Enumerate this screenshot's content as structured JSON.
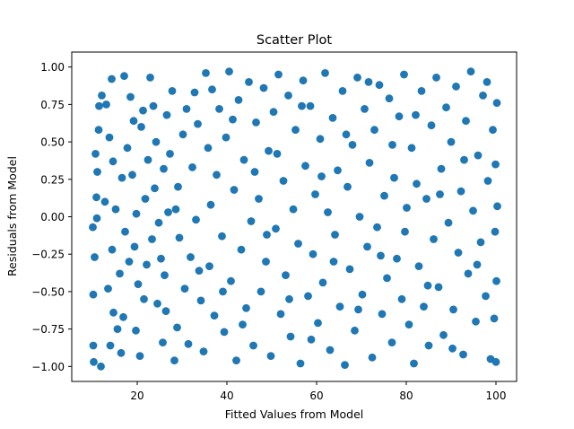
{
  "chart_data": {
    "type": "scatter",
    "title": "Scatter Plot",
    "xlabel": "Fitted Values from Model",
    "ylabel": "Residuals from Model",
    "xlim": [
      5.4,
      104.6
    ],
    "ylim": [
      -1.1,
      1.1
    ],
    "xticks": [
      20,
      40,
      60,
      80,
      100
    ],
    "xtick_labels": [
      "20",
      "40",
      "60",
      "80",
      "100"
    ],
    "yticks": [
      1.0,
      0.75,
      0.5,
      0.25,
      0.0,
      -0.25,
      -0.5,
      -0.75,
      -1.0
    ],
    "ytick_labels": [
      "1.00",
      "0.75",
      "0.50",
      "0.25",
      "0.00",
      "−0.25",
      "−0.50",
      "−0.75",
      "−1.00"
    ],
    "grid": false,
    "legend": "none",
    "marker_color": "#1f77b4",
    "points": [
      {
        "x": 11.9,
        "y": -1.0
      },
      {
        "x": 10.2,
        "y": -0.86
      },
      {
        "x": 10.3,
        "y": -0.97
      },
      {
        "x": 10.2,
        "y": -0.52
      },
      {
        "x": 10.5,
        "y": -0.27
      },
      {
        "x": 10.1,
        "y": -0.07
      },
      {
        "x": 11.0,
        "y": -0.01
      },
      {
        "x": 10.9,
        "y": 0.13
      },
      {
        "x": 11.1,
        "y": 0.3
      },
      {
        "x": 10.7,
        "y": 0.42
      },
      {
        "x": 11.4,
        "y": 0.58
      },
      {
        "x": 11.5,
        "y": 0.74
      },
      {
        "x": 12.1,
        "y": 0.81
      },
      {
        "x": 13.1,
        "y": 0.75
      },
      {
        "x": 14.3,
        "y": 0.92
      },
      {
        "x": 13.8,
        "y": 0.53
      },
      {
        "x": 14.6,
        "y": 0.37
      },
      {
        "x": 15.2,
        "y": 0.05
      },
      {
        "x": 14.4,
        "y": -0.22
      },
      {
        "x": 13.5,
        "y": -0.48
      },
      {
        "x": 14.7,
        "y": -0.64
      },
      {
        "x": 14.0,
        "y": -0.86
      },
      {
        "x": 16.4,
        "y": -0.91
      },
      {
        "x": 16.9,
        "y": -0.67
      },
      {
        "x": 16.1,
        "y": -0.38
      },
      {
        "x": 17.3,
        "y": -0.1
      },
      {
        "x": 16.6,
        "y": 0.26
      },
      {
        "x": 17.8,
        "y": 0.46
      },
      {
        "x": 17.1,
        "y": 0.94
      },
      {
        "x": 18.5,
        "y": 0.8
      },
      {
        "x": 19.2,
        "y": 0.64
      },
      {
        "x": 18.9,
        "y": 0.28
      },
      {
        "x": 19.8,
        "y": 0.02
      },
      {
        "x": 19.4,
        "y": -0.2
      },
      {
        "x": 20.2,
        "y": -0.45
      },
      {
        "x": 19.7,
        "y": -0.76
      },
      {
        "x": 20.6,
        "y": -0.93
      },
      {
        "x": 21.5,
        "y": -0.55
      },
      {
        "x": 22.1,
        "y": -0.32
      },
      {
        "x": 21.8,
        "y": 0.12
      },
      {
        "x": 22.4,
        "y": 0.38
      },
      {
        "x": 21.3,
        "y": 0.71
      },
      {
        "x": 22.9,
        "y": 0.93
      },
      {
        "x": 23.6,
        "y": 0.74
      },
      {
        "x": 24.2,
        "y": 0.5
      },
      {
        "x": 23.9,
        "y": 0.19
      },
      {
        "x": 24.8,
        "y": -0.04
      },
      {
        "x": 25.3,
        "y": -0.28
      },
      {
        "x": 24.5,
        "y": -0.58
      },
      {
        "x": 25.7,
        "y": -0.84
      },
      {
        "x": 26.4,
        "y": -0.63
      },
      {
        "x": 26.1,
        "y": -0.39
      },
      {
        "x": 26.9,
        "y": 0.03
      },
      {
        "x": 27.3,
        "y": 0.42
      },
      {
        "x": 26.6,
        "y": 0.68
      },
      {
        "x": 27.8,
        "y": 0.84
      },
      {
        "x": 28.3,
        "y": -0.96
      },
      {
        "x": 28.9,
        "y": -0.74
      },
      {
        "x": 29.4,
        "y": -0.14
      },
      {
        "x": 29.1,
        "y": 0.2
      },
      {
        "x": 30.2,
        "y": 0.55
      },
      {
        "x": 30.6,
        "y": -0.48
      },
      {
        "x": 31.4,
        "y": -0.85
      },
      {
        "x": 31.9,
        "y": -0.27
      },
      {
        "x": 32.3,
        "y": 0.33
      },
      {
        "x": 32.8,
        "y": 0.83
      },
      {
        "x": 33.5,
        "y": 0.62
      },
      {
        "x": 33.1,
        "y": -0.02
      },
      {
        "x": 34.2,
        "y": -0.56
      },
      {
        "x": 34.8,
        "y": -0.9
      },
      {
        "x": 35.3,
        "y": 0.96
      },
      {
        "x": 35.8,
        "y": 0.46
      },
      {
        "x": 36.4,
        "y": 0.08
      },
      {
        "x": 36.1,
        "y": -0.33
      },
      {
        "x": 37.2,
        "y": -0.66
      },
      {
        "x": 37.7,
        "y": 0.28
      },
      {
        "x": 38.3,
        "y": 0.72
      },
      {
        "x": 38.9,
        "y": -0.13
      },
      {
        "x": 39.4,
        "y": -0.77
      },
      {
        "x": 39.8,
        "y": 0.53
      },
      {
        "x": 40.5,
        "y": 0.97
      },
      {
        "x": 40.9,
        "y": -0.43
      },
      {
        "x": 41.6,
        "y": 0.18
      },
      {
        "x": 42.1,
        "y": -0.96
      },
      {
        "x": 42.6,
        "y": 0.78
      },
      {
        "x": 43.2,
        "y": -0.22
      },
      {
        "x": 43.8,
        "y": 0.38
      },
      {
        "x": 44.3,
        "y": -0.61
      },
      {
        "x": 44.9,
        "y": 0.9
      },
      {
        "x": 45.4,
        "y": -0.03
      },
      {
        "x": 45.9,
        "y": -0.86
      },
      {
        "x": 46.5,
        "y": 0.63
      },
      {
        "x": 47.1,
        "y": 0.12
      },
      {
        "x": 47.6,
        "y": -0.5
      },
      {
        "x": 48.2,
        "y": 0.86
      },
      {
        "x": 48.7,
        "y": -0.3
      },
      {
        "x": 49.3,
        "y": 0.44
      },
      {
        "x": 49.8,
        "y": -0.93
      },
      {
        "x": 50.4,
        "y": 0.7
      },
      {
        "x": 50.9,
        "y": -0.08
      },
      {
        "x": 51.5,
        "y": 0.95
      },
      {
        "x": 52.0,
        "y": -0.65
      },
      {
        "x": 52.6,
        "y": 0.24
      },
      {
        "x": 53.1,
        "y": -0.39
      },
      {
        "x": 53.7,
        "y": 0.81
      },
      {
        "x": 54.2,
        "y": -0.8
      },
      {
        "x": 54.8,
        "y": 0.05
      },
      {
        "x": 55.3,
        "y": 0.58
      },
      {
        "x": 55.9,
        "y": -0.18
      },
      {
        "x": 56.4,
        "y": -0.98
      },
      {
        "x": 57.0,
        "y": 0.91
      },
      {
        "x": 57.5,
        "y": 0.34
      },
      {
        "x": 58.1,
        "y": -0.53
      },
      {
        "x": 58.6,
        "y": 0.74
      },
      {
        "x": 59.2,
        "y": -0.25
      },
      {
        "x": 59.7,
        "y": 0.15
      },
      {
        "x": 60.3,
        "y": -0.71
      },
      {
        "x": 60.8,
        "y": 0.52
      },
      {
        "x": 61.4,
        "y": -0.44
      },
      {
        "x": 61.9,
        "y": 0.96
      },
      {
        "x": 62.5,
        "y": 0.03
      },
      {
        "x": 63.0,
        "y": -0.89
      },
      {
        "x": 63.6,
        "y": 0.66
      },
      {
        "x": 64.1,
        "y": -0.12
      },
      {
        "x": 64.7,
        "y": 0.31
      },
      {
        "x": 65.2,
        "y": -0.6
      },
      {
        "x": 65.8,
        "y": 0.84
      },
      {
        "x": 66.3,
        "y": -0.99
      },
      {
        "x": 66.9,
        "y": 0.2
      },
      {
        "x": 67.4,
        "y": -0.35
      },
      {
        "x": 68.0,
        "y": 0.48
      },
      {
        "x": 68.5,
        "y": -0.76
      },
      {
        "x": 69.1,
        "y": 0.93
      },
      {
        "x": 69.6,
        "y": 0.0
      },
      {
        "x": 70.2,
        "y": -0.52
      },
      {
        "x": 70.7,
        "y": 0.72
      },
      {
        "x": 71.3,
        "y": -0.2
      },
      {
        "x": 71.8,
        "y": 0.36
      },
      {
        "x": 72.4,
        "y": -0.94
      },
      {
        "x": 72.9,
        "y": 0.58
      },
      {
        "x": 73.5,
        "y": -0.07
      },
      {
        "x": 74.0,
        "y": 0.88
      },
      {
        "x": 74.6,
        "y": -0.65
      },
      {
        "x": 75.1,
        "y": 0.14
      },
      {
        "x": 75.7,
        "y": -0.41
      },
      {
        "x": 76.2,
        "y": 0.79
      },
      {
        "x": 76.8,
        "y": -0.84
      },
      {
        "x": 77.3,
        "y": 0.26
      },
      {
        "x": 77.9,
        "y": -0.28
      },
      {
        "x": 78.4,
        "y": 0.67
      },
      {
        "x": 79.0,
        "y": -0.55
      },
      {
        "x": 79.5,
        "y": 0.95
      },
      {
        "x": 80.1,
        "y": 0.06
      },
      {
        "x": 80.6,
        "y": -0.72
      },
      {
        "x": 81.2,
        "y": 0.46
      },
      {
        "x": 81.7,
        "y": -0.98
      },
      {
        "x": 82.3,
        "y": 0.22
      },
      {
        "x": 82.8,
        "y": -0.33
      },
      {
        "x": 83.4,
        "y": 0.84
      },
      {
        "x": 83.9,
        "y": -0.6
      },
      {
        "x": 84.5,
        "y": 0.12
      },
      {
        "x": 85.0,
        "y": -0.86
      },
      {
        "x": 85.6,
        "y": 0.61
      },
      {
        "x": 86.1,
        "y": -0.15
      },
      {
        "x": 86.7,
        "y": 0.93
      },
      {
        "x": 87.2,
        "y": -0.47
      },
      {
        "x": 87.8,
        "y": 0.32
      },
      {
        "x": 88.3,
        "y": -0.79
      },
      {
        "x": 88.9,
        "y": 0.73
      },
      {
        "x": 89.4,
        "y": -0.04
      },
      {
        "x": 90.0,
        "y": 0.5
      },
      {
        "x": 90.5,
        "y": -0.62
      },
      {
        "x": 91.1,
        "y": 0.87
      },
      {
        "x": 91.6,
        "y": -0.24
      },
      {
        "x": 92.2,
        "y": 0.17
      },
      {
        "x": 92.7,
        "y": -0.92
      },
      {
        "x": 93.3,
        "y": 0.64
      },
      {
        "x": 93.8,
        "y": -0.38
      },
      {
        "x": 94.4,
        "y": 0.97
      },
      {
        "x": 94.9,
        "y": 0.04
      },
      {
        "x": 95.5,
        "y": -0.7
      },
      {
        "x": 96.0,
        "y": 0.41
      },
      {
        "x": 96.6,
        "y": -0.17
      },
      {
        "x": 97.1,
        "y": 0.81
      },
      {
        "x": 97.7,
        "y": -0.53
      },
      {
        "x": 98.2,
        "y": 0.24
      },
      {
        "x": 98.8,
        "y": -0.95
      },
      {
        "x": 99.3,
        "y": 0.58
      },
      {
        "x": 99.8,
        "y": -0.1
      },
      {
        "x": 100.2,
        "y": 0.76
      },
      {
        "x": 100.0,
        "y": -0.97
      },
      {
        "x": 99.9,
        "y": 0.35
      },
      {
        "x": 100.1,
        "y": -0.43
      },
      {
        "x": 100.3,
        "y": 0.07
      },
      {
        "x": 99.6,
        "y": -0.68
      },
      {
        "x": 12.8,
        "y": 0.1
      },
      {
        "x": 15.6,
        "y": -0.75
      },
      {
        "x": 18.2,
        "y": -0.3
      },
      {
        "x": 20.9,
        "y": 0.6
      },
      {
        "x": 23.3,
        "y": -0.15
      },
      {
        "x": 25.9,
        "y": 0.32
      },
      {
        "x": 28.6,
        "y": 0.05
      },
      {
        "x": 31.0,
        "y": 0.72
      },
      {
        "x": 33.8,
        "y": -0.36
      },
      {
        "x": 36.7,
        "y": 0.85
      },
      {
        "x": 39.1,
        "y": -0.5
      },
      {
        "x": 41.3,
        "y": 0.65
      },
      {
        "x": 43.5,
        "y": -0.72
      },
      {
        "x": 46.2,
        "y": 0.3
      },
      {
        "x": 48.9,
        "y": -0.12
      },
      {
        "x": 51.2,
        "y": 0.42
      },
      {
        "x": 53.9,
        "y": -0.55
      },
      {
        "x": 56.7,
        "y": 0.74
      },
      {
        "x": 58.8,
        "y": -0.82
      },
      {
        "x": 61.1,
        "y": 0.27
      },
      {
        "x": 63.8,
        "y": -0.3
      },
      {
        "x": 66.6,
        "y": 0.55
      },
      {
        "x": 69.3,
        "y": -0.62
      },
      {
        "x": 71.6,
        "y": 0.9
      },
      {
        "x": 74.3,
        "y": -0.26
      },
      {
        "x": 76.9,
        "y": 0.48
      },
      {
        "x": 79.7,
        "y": -0.1
      },
      {
        "x": 82.1,
        "y": 0.68
      },
      {
        "x": 84.8,
        "y": -0.46
      },
      {
        "x": 87.5,
        "y": 0.15
      },
      {
        "x": 90.3,
        "y": -0.88
      },
      {
        "x": 92.9,
        "y": 0.38
      },
      {
        "x": 95.8,
        "y": -0.32
      },
      {
        "x": 98.0,
        "y": 0.9
      }
    ]
  }
}
